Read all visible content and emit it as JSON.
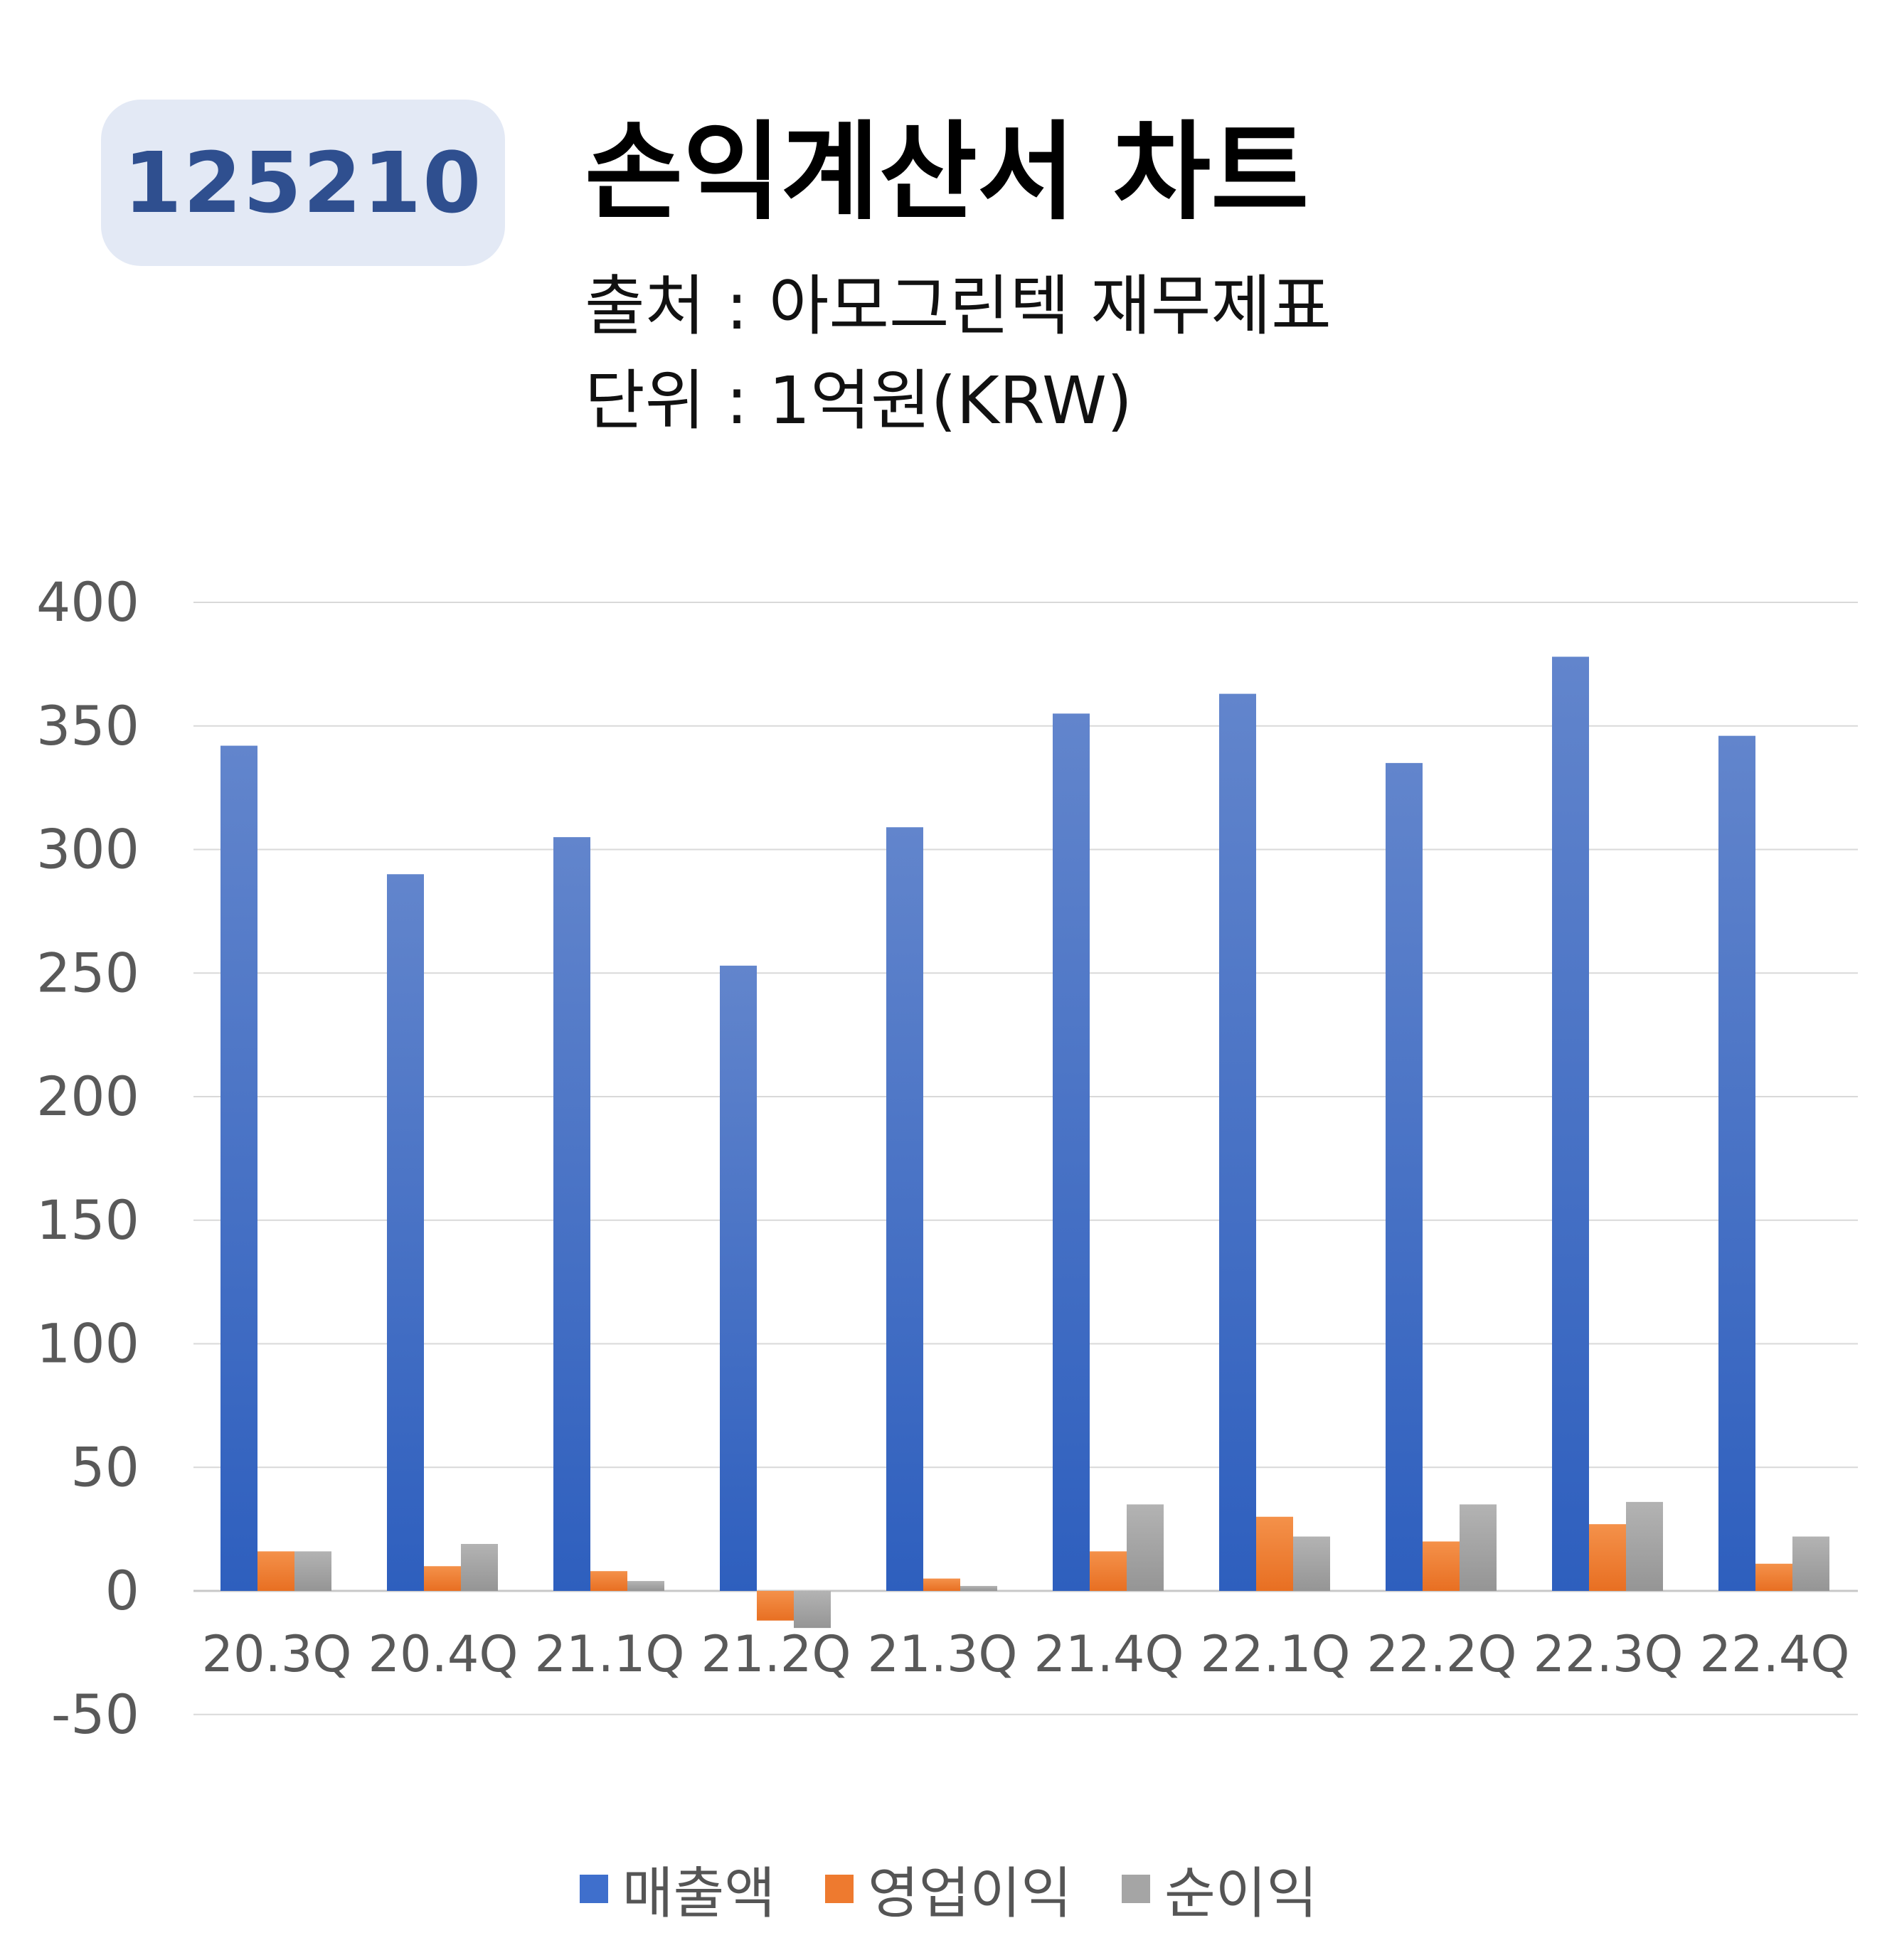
{
  "header": {
    "code": "125210",
    "title": "손익계산서 차트",
    "source_line": "출처 : 아모그린텍 재무제표",
    "unit_line": "단위 : 1억원(KRW)"
  },
  "colors": {
    "sales": "#3f6fcc",
    "operating": "#ee7a2f",
    "net": "#a5a5a5",
    "grid": "#d9d9d9",
    "tick": "#595959"
  },
  "chart_data": {
    "type": "bar",
    "categories": [
      "20.3Q",
      "20.4Q",
      "21.1Q",
      "21.2Q",
      "21.3Q",
      "21.4Q",
      "22.1Q",
      "22.2Q",
      "22.3Q",
      "22.4Q"
    ],
    "series": [
      {
        "name": "매출액",
        "values": [
          342,
          290,
          305,
          253,
          309,
          355,
          363,
          335,
          378,
          346
        ]
      },
      {
        "name": "영업이익",
        "values": [
          16,
          10,
          8,
          -12,
          5,
          16,
          30,
          20,
          27,
          11
        ]
      },
      {
        "name": "순이익",
        "values": [
          16,
          19,
          4,
          -15,
          2,
          35,
          22,
          35,
          36,
          22
        ]
      }
    ],
    "ylim": [
      -50,
      400
    ],
    "yticks": [
      -50,
      0,
      50,
      100,
      150,
      200,
      250,
      300,
      350,
      400
    ],
    "grid": true,
    "legend_position": "bottom"
  }
}
